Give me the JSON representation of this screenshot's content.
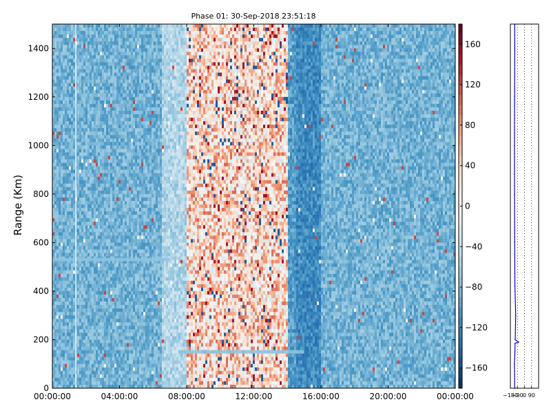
{
  "chart_data": [
    {
      "type": "heatmap",
      "title": "Phase 01: 30-Sep-2018 23:51:18",
      "ylabel": "Range (Km)",
      "x_ticks": [
        "00:00:00",
        "04:00:00",
        "08:00:00",
        "12:00:00",
        "16:00:00",
        "20:00:00",
        "00:00:00"
      ],
      "x_range_hours": [
        0,
        24
      ],
      "y_ticks": [
        0,
        200,
        400,
        600,
        800,
        1000,
        1200,
        1400
      ],
      "ylim": [
        0,
        1500
      ],
      "colorbar": {
        "ticks": [
          "160",
          "120",
          "80",
          "40",
          "0",
          "−40",
          "−80",
          "−120",
          "−160"
        ],
        "tick_values": [
          160,
          120,
          80,
          40,
          0,
          -40,
          -80,
          -120,
          -160
        ],
        "range": [
          -180,
          180
        ],
        "colormap": "RdBu_r"
      },
      "phase_profile_by_hour": [
        {
          "hour_start": 0,
          "hour_end": 6.5,
          "phase_deg": -85
        },
        {
          "hour_start": 6.5,
          "hour_end": 8,
          "phase_deg": -55
        },
        {
          "hour_start": 8,
          "hour_end": 14,
          "phase_deg": 35
        },
        {
          "hour_start": 14,
          "hour_end": 14.5,
          "phase_deg": -100
        },
        {
          "hour_start": 14.5,
          "hour_end": 16,
          "phase_deg": -115
        },
        {
          "hour_start": 16,
          "hour_end": 24,
          "phase_deg": -85
        }
      ],
      "features": [
        {
          "kind": "horizontal band",
          "range_km": 150,
          "hour_start": 7.5,
          "hour_end": 15
        },
        {
          "kind": "horizontal band",
          "range_km": 530,
          "hour_start": 0,
          "hour_end": 7
        },
        {
          "kind": "vertical line",
          "hour": 1.4
        }
      ]
    },
    {
      "type": "line",
      "x_ticks": [
        "−180",
        "−90",
        "0",
        "90"
      ],
      "x_tick_values": [
        -180,
        -90,
        0,
        90
      ],
      "xlim": [
        -180,
        180
      ],
      "ylim": [
        0,
        1500
      ],
      "grid": "dotted vertical",
      "description_series": "phase vs range profile",
      "points": [
        [
          -125,
          0
        ],
        [
          -128,
          100
        ],
        [
          -122,
          150
        ],
        [
          -120,
          185
        ],
        [
          -75,
          190
        ],
        [
          -118,
          200
        ],
        [
          -112,
          300
        ],
        [
          -122,
          420
        ],
        [
          -125,
          600
        ],
        [
          -127,
          800
        ],
        [
          -128,
          1000
        ],
        [
          -126,
          1200
        ],
        [
          -124,
          1400
        ],
        [
          -125,
          1500
        ]
      ]
    }
  ]
}
